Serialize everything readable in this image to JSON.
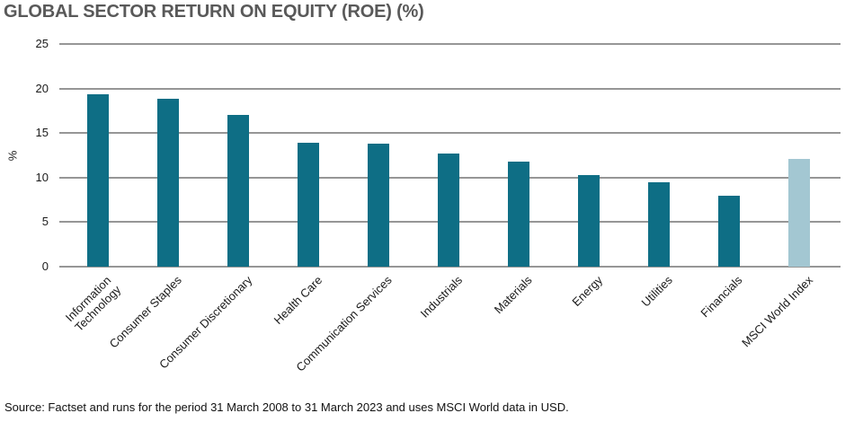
{
  "chart_data": {
    "type": "bar",
    "title": "GLOBAL SECTOR RETURN ON EQUITY (ROE) (%)",
    "xlabel": "",
    "ylabel": "%",
    "ylim": [
      0,
      25
    ],
    "yticks": [
      0,
      5,
      10,
      15,
      20,
      25
    ],
    "grid": "horizontal gridlines, no vertical",
    "legend": "none",
    "categories": [
      "Information\nTechnology",
      "Consumer Staples",
      "Consumer Discretionary",
      "Health Care",
      "Communication Services",
      "Industrials",
      "Materials",
      "Energy",
      "Utilities",
      "Financials",
      "MSCI World Index"
    ],
    "values": [
      19.4,
      18.9,
      17.0,
      13.9,
      13.8,
      12.7,
      11.8,
      10.3,
      9.5,
      8.0,
      12.1
    ],
    "highlight_index": 10,
    "x_tick_rotation_deg": 45
  },
  "colors": {
    "bar_default": "#0e6e85",
    "bar_highlight": "#a3c7d2",
    "gridline": "#969696",
    "title_text": "#595959",
    "axis_text": "#1a1a1a"
  },
  "footer": {
    "source": "Source: Factset and runs for the period 31 March 2008 to 31 March 2023 and uses MSCI World data in USD."
  }
}
